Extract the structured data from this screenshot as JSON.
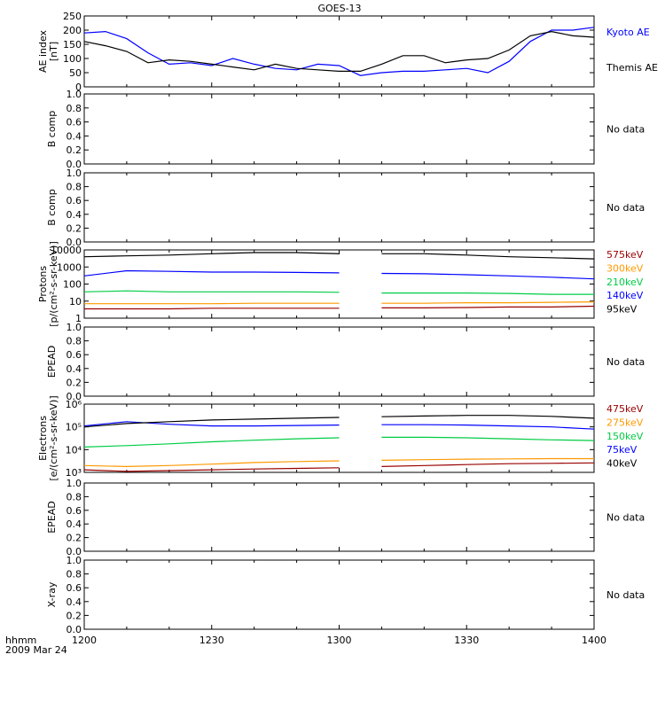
{
  "title": "GOES-13",
  "footer": {
    "unit_label": "hhmm",
    "date_label": "2009 Mar 24"
  },
  "x_axis": {
    "range": [
      1200,
      1400
    ],
    "ticks": [
      "1200",
      "1230",
      "1300",
      "1330",
      "1400"
    ]
  },
  "colors": {
    "black": "#000000",
    "blue": "#0000ff",
    "green": "#00cc44",
    "orange": "#ff9900",
    "darkred": "#990000"
  },
  "chart_data": [
    {
      "type": "line",
      "ylabel": "AE index [nT]",
      "ylim": [
        0,
        250
      ],
      "yticks": [
        "0",
        "50",
        "100",
        "150",
        "200",
        "250"
      ],
      "series": [
        {
          "name": "Kyoto AE",
          "color": "#0000ff",
          "x": [
            1200,
            1205,
            1210,
            1215,
            1220,
            1225,
            1230,
            1235,
            1240,
            1245,
            1250,
            1255,
            1300,
            1305,
            1310,
            1315,
            1320,
            1325,
            1330,
            1335,
            1340,
            1345,
            1350,
            1355,
            1400
          ],
          "y": [
            190,
            195,
            170,
            120,
            80,
            85,
            75,
            100,
            80,
            65,
            60,
            80,
            75,
            40,
            50,
            55,
            55,
            60,
            65,
            50,
            90,
            160,
            200,
            200,
            210
          ]
        },
        {
          "name": "Themis AE",
          "color": "#000000",
          "x": [
            1200,
            1205,
            1210,
            1215,
            1220,
            1225,
            1230,
            1235,
            1240,
            1245,
            1250,
            1255,
            1300,
            1305,
            1310,
            1315,
            1320,
            1325,
            1330,
            1335,
            1340,
            1345,
            1350,
            1355,
            1400
          ],
          "y": [
            160,
            145,
            125,
            85,
            95,
            90,
            80,
            70,
            60,
            80,
            65,
            60,
            55,
            55,
            80,
            110,
            110,
            85,
            95,
            100,
            130,
            180,
            195,
            180,
            175
          ]
        }
      ]
    },
    {
      "type": "line",
      "ylabel": "B comp",
      "ylim": [
        0,
        1
      ],
      "yticks": [
        "0.0",
        "0.2",
        "0.4",
        "0.6",
        "0.8",
        "1.0"
      ],
      "note": "No data"
    },
    {
      "type": "line",
      "ylabel": "B comp",
      "ylim": [
        0,
        1
      ],
      "yticks": [
        "0.0",
        "0.2",
        "0.4",
        "0.6",
        "0.8",
        "1.0"
      ],
      "note": "No data"
    },
    {
      "type": "line",
      "ylabel": "Protons [p/(cm²-s-sr-keV)]",
      "yscale": "log",
      "ylim": [
        1,
        10000
      ],
      "yticks": [
        "1",
        "10",
        "100",
        "1000",
        "10000"
      ],
      "series": [
        {
          "name": "575keV",
          "color": "#990000",
          "x": [
            1200,
            1210,
            1220,
            1230,
            1240,
            1250,
            1300,
            1302,
            1310,
            1320,
            1330,
            1340,
            1350,
            1400
          ],
          "y": [
            3.5,
            3.5,
            3.5,
            3.8,
            3.8,
            3.8,
            3.8,
            null,
            4,
            4,
            4.2,
            4.5,
            4.5,
            5
          ]
        },
        {
          "name": "300keV",
          "color": "#ff9900",
          "x": [
            1200,
            1210,
            1220,
            1230,
            1240,
            1250,
            1300,
            1302,
            1310,
            1320,
            1330,
            1340,
            1350,
            1400
          ],
          "y": [
            7,
            7,
            7,
            7,
            7.5,
            7.5,
            7.5,
            null,
            7.5,
            7.5,
            8,
            8,
            8.5,
            9
          ]
        },
        {
          "name": "210keV",
          "color": "#00cc44",
          "x": [
            1200,
            1210,
            1220,
            1230,
            1240,
            1250,
            1300,
            1302,
            1310,
            1320,
            1330,
            1340,
            1350,
            1400
          ],
          "y": [
            35,
            40,
            35,
            35,
            35,
            35,
            33,
            null,
            30,
            30,
            30,
            28,
            25,
            25
          ]
        },
        {
          "name": "140keV",
          "color": "#0000ff",
          "x": [
            1200,
            1210,
            1220,
            1230,
            1240,
            1250,
            1300,
            1302,
            1310,
            1320,
            1330,
            1340,
            1350,
            1400
          ],
          "y": [
            300,
            600,
            550,
            500,
            500,
            480,
            450,
            null,
            420,
            400,
            350,
            300,
            250,
            200
          ]
        },
        {
          "name": "95keV",
          "color": "#000000",
          "x": [
            1200,
            1210,
            1220,
            1230,
            1240,
            1250,
            1300,
            1302,
            1310,
            1320,
            1330,
            1340,
            1350,
            1400
          ],
          "y": [
            4000,
            4500,
            5000,
            6000,
            7000,
            7000,
            6000,
            null,
            6000,
            6000,
            5000,
            4000,
            3500,
            3000
          ]
        }
      ]
    },
    {
      "type": "line",
      "ylabel": "EPEAD",
      "ylim": [
        0,
        1
      ],
      "yticks": [
        "0.0",
        "0.2",
        "0.4",
        "0.6",
        "0.8",
        "1.0"
      ],
      "note": "No data"
    },
    {
      "type": "line",
      "ylabel": "Electrons [e/(cm²-s-sr-keV)]",
      "yscale": "log",
      "ylim": [
        1000,
        1000000
      ],
      "yticks": [
        "10³",
        "10⁴",
        "10⁵",
        "10⁶"
      ],
      "series": [
        {
          "name": "475keV",
          "color": "#990000",
          "x": [
            1200,
            1210,
            1220,
            1230,
            1240,
            1250,
            1300,
            1302,
            1310,
            1320,
            1330,
            1340,
            1350,
            1400
          ],
          "y": [
            1300,
            1100,
            1200,
            1300,
            1400,
            1500,
            1600,
            null,
            1800,
            2000,
            2200,
            2400,
            2500,
            2600
          ]
        },
        {
          "name": "275keV",
          "color": "#ff9900",
          "x": [
            1200,
            1210,
            1220,
            1230,
            1240,
            1250,
            1300,
            1302,
            1310,
            1320,
            1330,
            1340,
            1350,
            1400
          ],
          "y": [
            2000,
            1800,
            2000,
            2300,
            2700,
            3000,
            3200,
            null,
            3400,
            3600,
            3800,
            3900,
            4000,
            4000
          ]
        },
        {
          "name": "150keV",
          "color": "#00cc44",
          "x": [
            1200,
            1210,
            1220,
            1230,
            1240,
            1250,
            1300,
            1302,
            1310,
            1320,
            1330,
            1340,
            1350,
            1400
          ],
          "y": [
            13000,
            15000,
            18000,
            22000,
            26000,
            30000,
            33000,
            null,
            35000,
            35000,
            33000,
            30000,
            27000,
            25000
          ]
        },
        {
          "name": "75keV",
          "color": "#0000ff",
          "x": [
            1200,
            1210,
            1220,
            1230,
            1240,
            1250,
            1300,
            1302,
            1310,
            1320,
            1330,
            1340,
            1350,
            1400
          ],
          "y": [
            110000,
            170000,
            130000,
            110000,
            110000,
            115000,
            120000,
            null,
            125000,
            125000,
            120000,
            110000,
            100000,
            80000
          ]
        },
        {
          "name": "40keV",
          "color": "#000000",
          "x": [
            1200,
            1210,
            1220,
            1230,
            1240,
            1250,
            1300,
            1302,
            1310,
            1320,
            1330,
            1340,
            1350,
            1400
          ],
          "y": [
            100000,
            140000,
            170000,
            200000,
            220000,
            240000,
            260000,
            null,
            280000,
            300000,
            320000,
            320000,
            290000,
            240000
          ]
        }
      ]
    },
    {
      "type": "line",
      "ylabel": "EPEAD",
      "ylim": [
        0,
        1
      ],
      "yticks": [
        "0.0",
        "0.2",
        "0.4",
        "0.6",
        "0.8",
        "1.0"
      ],
      "note": "No data"
    },
    {
      "type": "line",
      "ylabel": "X-ray",
      "ylim": [
        0,
        1
      ],
      "yticks": [
        "0.0",
        "0.2",
        "0.4",
        "0.6",
        "0.8",
        "1.0"
      ],
      "note": "No data"
    }
  ]
}
